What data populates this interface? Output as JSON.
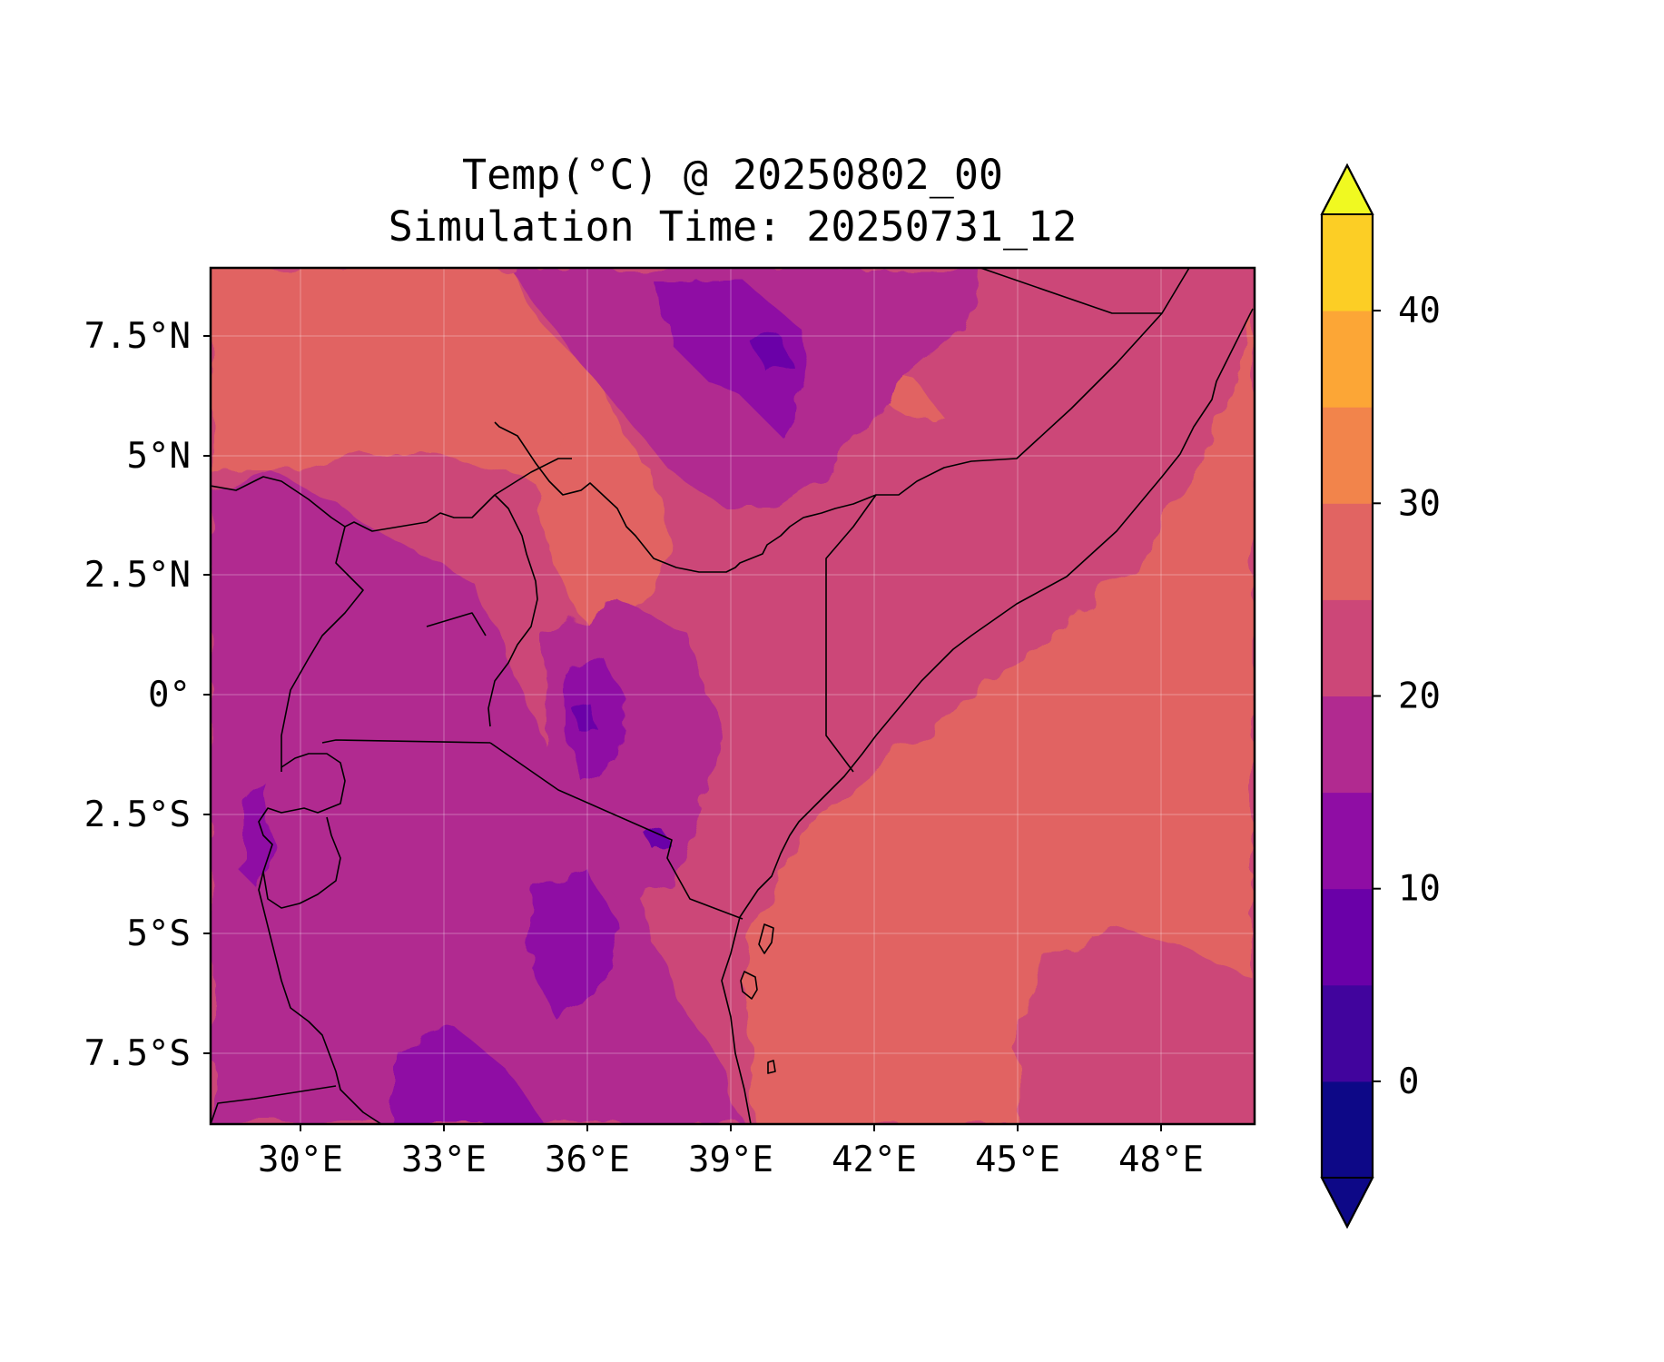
{
  "title": {
    "line1": "Temp(°C) @ 20250802_00",
    "line2": "Simulation Time: 20250731_12"
  },
  "map": {
    "x_ticks": [
      "30°E",
      "33°E",
      "36°E",
      "39°E",
      "42°E",
      "45°E",
      "48°E"
    ],
    "y_ticks": [
      "7.5°N",
      "5°N",
      "2.5°N",
      "0°",
      "2.5°S",
      "5°S",
      "7.5°S"
    ],
    "lon_range": [
      28.1,
      49.9
    ],
    "lat_range": [
      -9.0,
      8.9
    ],
    "variable": "2 m temperature",
    "units": "°C",
    "gridlines": true,
    "borders": true,
    "coastlines": true
  },
  "colorbar": {
    "ticks": [
      "0",
      "10",
      "20",
      "30",
      "40"
    ],
    "levels": [
      -5,
      0,
      5,
      10,
      15,
      20,
      25,
      30,
      35,
      40,
      45
    ],
    "extend": "both",
    "colormap": "plasma",
    "colors": [
      "#0d0887",
      "#41049d",
      "#6a00a8",
      "#8f0da4",
      "#b12a90",
      "#cc4778",
      "#e16462",
      "#f2844b",
      "#fca636",
      "#fcce25",
      "#f0f921"
    ],
    "under_color": "#0d0887",
    "over_color": "#f0f921"
  }
}
